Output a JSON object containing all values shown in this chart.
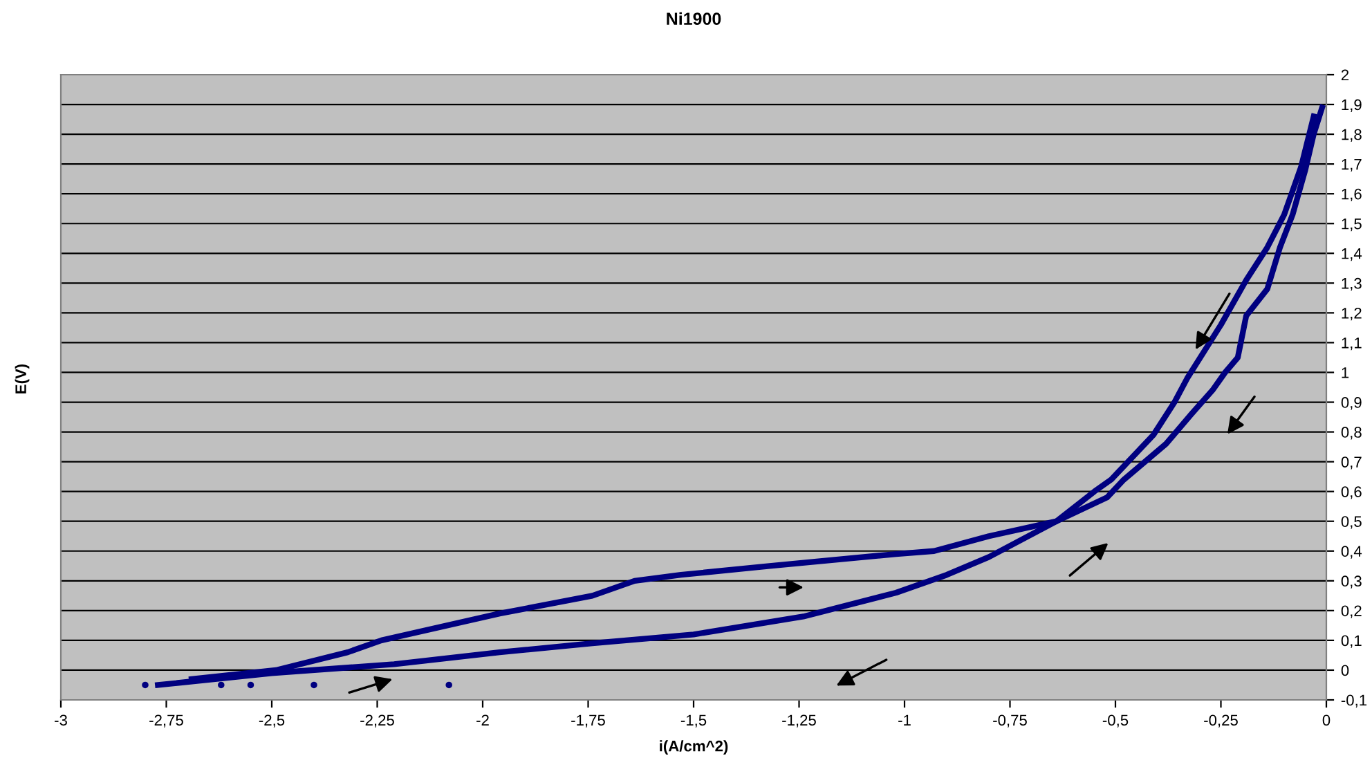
{
  "chart_data": {
    "type": "line",
    "title": "Ni1900",
    "xlabel": "i(A/cm^2)",
    "ylabel": "E(V)",
    "series": [
      {
        "type": "line",
        "color": "#000080",
        "x": [
          -2.77,
          -2.5,
          -2.21,
          -1.96,
          -1.74,
          -1.5,
          -1.24,
          -1.02,
          -0.9,
          -0.8,
          -0.64,
          -0.52,
          -0.48,
          -0.38,
          -0.32,
          -0.27,
          -0.24,
          -0.21,
          -0.19,
          -0.14,
          -0.11,
          -0.08,
          -0.05,
          -0.03,
          -0.01
        ],
        "values": [
          -0.05,
          -0.01,
          0.02,
          0.06,
          0.09,
          0.12,
          0.18,
          0.26,
          0.32,
          0.38,
          0.5,
          0.58,
          0.64,
          0.76,
          0.86,
          0.94,
          1.0,
          1.05,
          1.19,
          1.28,
          1.42,
          1.53,
          1.68,
          1.8,
          1.89
        ]
      },
      {
        "color": "#000080",
        "x": [
          -2.69,
          -2.49,
          -2.32,
          -2.24,
          -1.96,
          -1.74,
          -1.64,
          -1.53,
          -1.32,
          -1.02,
          -0.93,
          -0.8,
          -0.64,
          -0.55,
          -0.51,
          -0.41,
          -0.36,
          -0.33,
          -0.25,
          -0.19,
          -0.14,
          -0.1,
          -0.06,
          -0.03
        ],
        "values": [
          -0.03,
          0.0,
          0.06,
          0.1,
          0.19,
          0.25,
          0.3,
          0.32,
          0.35,
          0.39,
          0.4,
          0.45,
          0.5,
          0.6,
          0.64,
          0.79,
          0.9,
          0.98,
          1.16,
          1.31,
          1.42,
          1.53,
          1.69,
          1.86
        ]
      },
      {
        "type": "scatter",
        "color": "#000080",
        "marker": "circle",
        "x": [
          -2.8,
          -2.62,
          -2.55,
          -2.4,
          -2.08
        ],
        "values": [
          -0.05,
          -0.05,
          -0.05,
          -0.05,
          -0.05
        ]
      }
    ],
    "xlim": [
      -3,
      0
    ],
    "xticks": [
      {
        "value": -3,
        "label": "-3"
      },
      {
        "value": -2.75,
        "label": "-2,75"
      },
      {
        "value": -2.5,
        "label": "-2,5"
      },
      {
        "value": -2.25,
        "label": "-2,25"
      },
      {
        "value": -2,
        "label": "-2"
      },
      {
        "value": -1.75,
        "label": "-1,75"
      },
      {
        "value": -1.5,
        "label": "-1,5"
      },
      {
        "value": -1.25,
        "label": "-1,25"
      },
      {
        "value": -1,
        "label": "-1"
      },
      {
        "value": -0.75,
        "label": "-0,75"
      },
      {
        "value": -0.5,
        "label": "-0,5"
      },
      {
        "value": -0.25,
        "label": "-0,25"
      },
      {
        "value": 0,
        "label": "0"
      }
    ],
    "ylim": [
      -0.1,
      2
    ],
    "yticks": [
      {
        "value": -0.1,
        "label": "-0,1"
      },
      {
        "value": 0,
        "label": "0"
      },
      {
        "value": 0.1,
        "label": "0,1"
      },
      {
        "value": 0.2,
        "label": "0,2"
      },
      {
        "value": 0.3,
        "label": "0,3"
      },
      {
        "value": 0.4,
        "label": "0,4"
      },
      {
        "value": 0.5,
        "label": "0,5"
      },
      {
        "value": 0.6,
        "label": "0,6"
      },
      {
        "value": 0.7,
        "label": "0,7"
      },
      {
        "value": 0.8,
        "label": "0,8"
      },
      {
        "value": 0.9,
        "label": "0,9"
      },
      {
        "value": 1,
        "label": "1"
      },
      {
        "value": 1.1,
        "label": "1,1"
      },
      {
        "value": 1.2,
        "label": "1,2"
      },
      {
        "value": 1.3,
        "label": "1,3"
      },
      {
        "value": 1.4,
        "label": "1,4"
      },
      {
        "value": 1.5,
        "label": "1,5"
      },
      {
        "value": 1.6,
        "label": "1,6"
      },
      {
        "value": 1.7,
        "label": "1,7"
      },
      {
        "value": 1.8,
        "label": "1,8"
      },
      {
        "value": 1.9,
        "label": "1,9"
      },
      {
        "value": 2,
        "label": "2"
      }
    ],
    "grid": "y"
  }
}
